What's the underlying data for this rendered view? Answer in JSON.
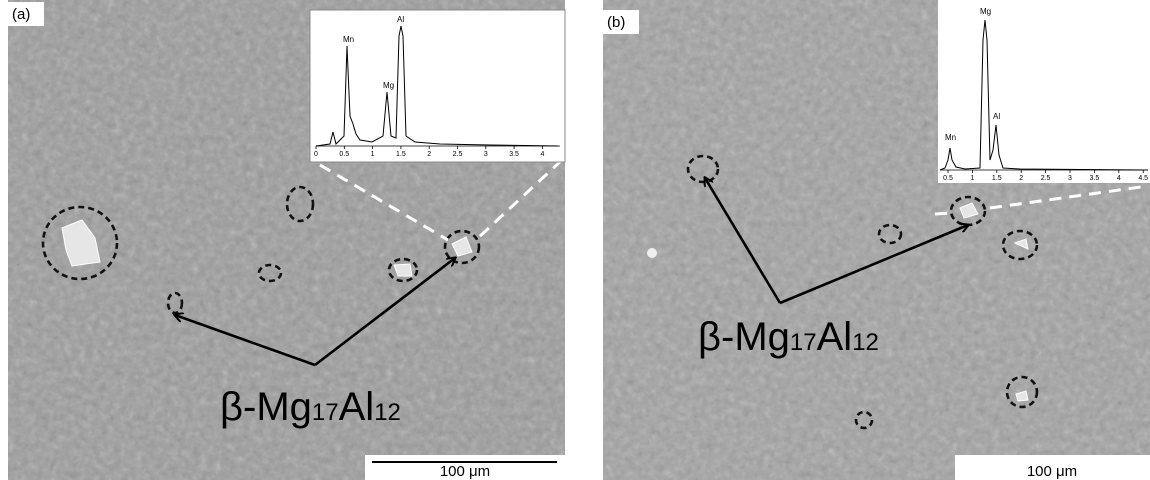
{
  "panels": [
    {
      "label": "(a)",
      "annotation": {
        "beta_mg": "β-Mg",
        "mg_sub": "17",
        "al": "Al",
        "al_sub": "12"
      },
      "scale_bar": "100 μm",
      "inset": {
        "x_ticks": [
          "0",
          "0.5",
          "1",
          "1.5",
          "2",
          "2.5",
          "3",
          "3.5",
          "4"
        ],
        "peaks": [
          "Mn",
          "Mg",
          "Al"
        ]
      }
    },
    {
      "label": "(b)",
      "annotation": {
        "beta_mg": "β-Mg",
        "mg_sub": "17",
        "al": "Al",
        "al_sub": "12"
      },
      "scale_bar": "100 μm",
      "inset": {
        "x_ticks": [
          "0.5",
          "1",
          "1.5",
          "2",
          "2.5",
          "3",
          "3.5",
          "4",
          "4.5"
        ],
        "peaks": [
          "Mn",
          "Mg",
          "Al"
        ]
      }
    }
  ]
}
